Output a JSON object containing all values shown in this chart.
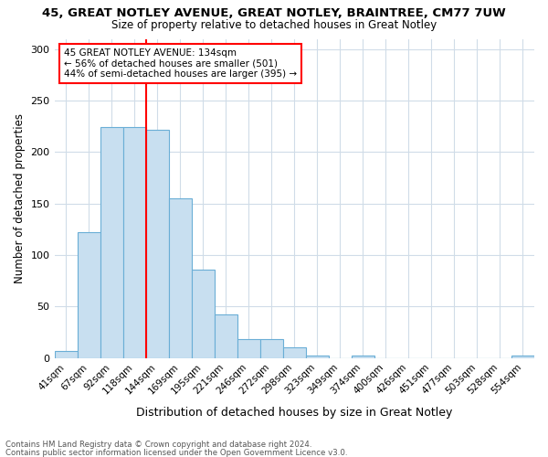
{
  "title": "45, GREAT NOTLEY AVENUE, GREAT NOTLEY, BRAINTREE, CM77 7UW",
  "subtitle": "Size of property relative to detached houses in Great Notley",
  "xlabel": "Distribution of detached houses by size in Great Notley",
  "ylabel": "Number of detached properties",
  "bin_labels": [
    "41sqm",
    "67sqm",
    "92sqm",
    "118sqm",
    "144sqm",
    "169sqm",
    "195sqm",
    "221sqm",
    "246sqm",
    "272sqm",
    "298sqm",
    "323sqm",
    "349sqm",
    "374sqm",
    "400sqm",
    "426sqm",
    "451sqm",
    "477sqm",
    "503sqm",
    "528sqm",
    "554sqm"
  ],
  "bar_heights": [
    7,
    122,
    224,
    224,
    222,
    155,
    86,
    42,
    18,
    18,
    10,
    2,
    0,
    2,
    0,
    0,
    0,
    0,
    0,
    0,
    2
  ],
  "bar_color": "#c8dff0",
  "bar_edge_color": "#6aaed6",
  "red_line_x": 3.5,
  "annotation_title": "45 GREAT NOTLEY AVENUE: 134sqm",
  "annotation_line1": "← 56% of detached houses are smaller (501)",
  "annotation_line2": "44% of semi-detached houses are larger (395) →",
  "ylim": [
    0,
    310
  ],
  "yticks": [
    0,
    50,
    100,
    150,
    200,
    250,
    300
  ],
  "footer1": "Contains HM Land Registry data © Crown copyright and database right 2024.",
  "footer2": "Contains public sector information licensed under the Open Government Licence v3.0.",
  "bg_color": "#ffffff",
  "grid_color": "#d0dce8"
}
